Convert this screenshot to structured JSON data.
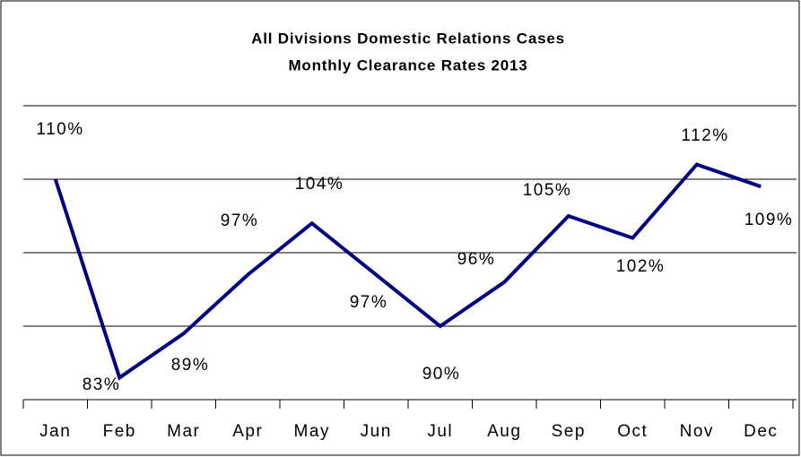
{
  "chart_data": {
    "type": "line",
    "title": "All Divisions Domestic Relations Cases",
    "subtitle": "Monthly Clearance Rates 2013",
    "categories": [
      "Jan",
      "Feb",
      "Mar",
      "Apr",
      "May",
      "Jun",
      "Jul",
      "Aug",
      "Sep",
      "Oct",
      "Nov",
      "Dec"
    ],
    "series": [
      {
        "color": "#000080",
        "values": [
          110,
          83,
          89,
          97,
          104,
          97,
          90,
          96,
          105,
          102,
          112,
          109
        ],
        "value_labels": [
          "110%",
          "83%",
          "89%",
          "97%",
          "104%",
          "97%",
          "90%",
          "96%",
          "105%",
          "102%",
          "112%",
          "109%"
        ]
      }
    ],
    "ylim": [
      80,
      120
    ],
    "yticks": [
      80,
      90,
      100,
      110,
      120
    ],
    "grid": true
  }
}
